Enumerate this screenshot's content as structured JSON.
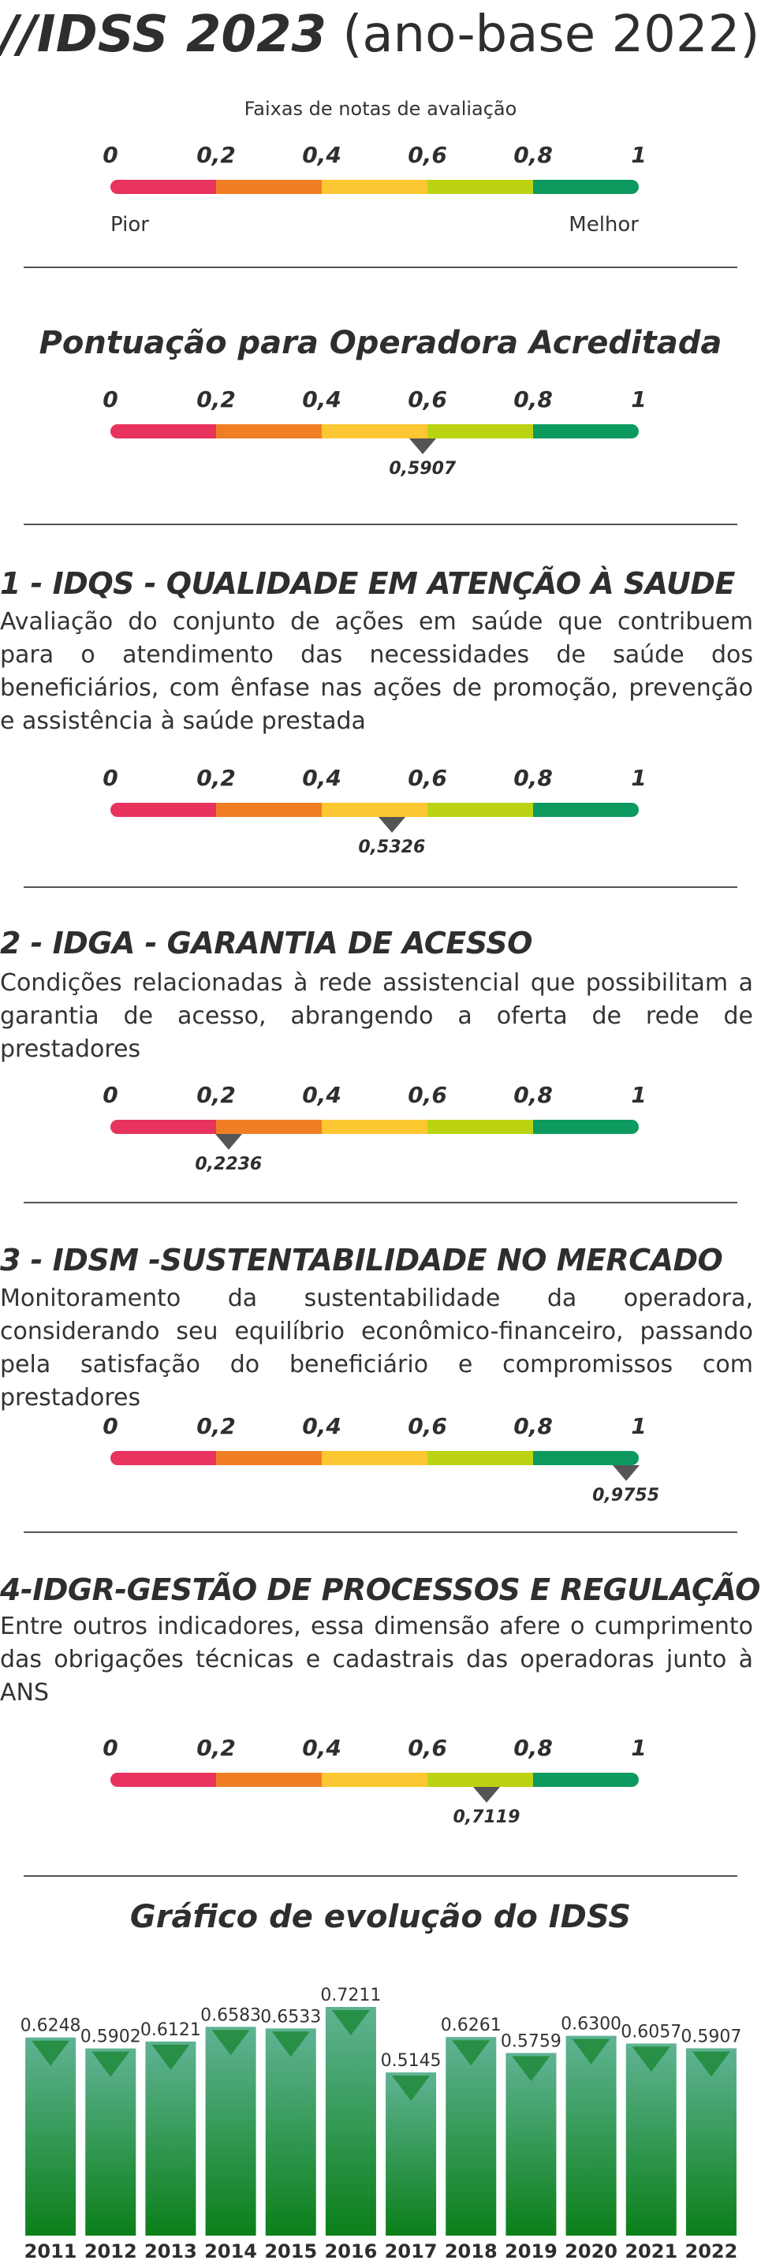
{
  "header": {
    "title_bold": "//IDSS 2023",
    "title_light": "(ano-base 2022)"
  },
  "legend_scale": {
    "caption": "Faixas de notas de avaliação",
    "left_label": "Pior",
    "right_label": "Melhor"
  },
  "scale_ticks": [
    "0",
    "0,2",
    "0,4",
    "0,6",
    "0,8",
    "1"
  ],
  "scale_colors": [
    "#e8335f",
    "#f07e25",
    "#fdc731",
    "#bcd312",
    "#0d9a5f"
  ],
  "accredited": {
    "heading": "Pontuação para Operadora Acreditada",
    "value": 0.5907,
    "value_label": "0,5907"
  },
  "sections": [
    {
      "title": "1 - IDQS - QUALIDADE EM ATENÇÃO À SAUDE",
      "description": "Avaliação do conjunto de ações em saúde que contribuem para o atendimento das necessidades de saúde dos beneficiários, com ênfase nas ações de promoção, prevenção e assistência à saúde prestada",
      "value": 0.5326,
      "value_label": "0,5326"
    },
    {
      "title": "2 - IDGA - GARANTIA DE ACESSO",
      "description": "Condições relacionadas à rede assistencial que possibilitam a garantia de acesso, abrangendo a oferta de rede de prestadores",
      "value": 0.2236,
      "value_label": "0,2236"
    },
    {
      "title": "3 - IDSM -SUSTENTABILIDADE NO MERCADO",
      "description": "Monitoramento da sustentabilidade da operadora, considerando seu equilíbrio econômico-financeiro, passando pela satisfação do beneficiário e compromissos com prestadores",
      "value": 0.9755,
      "value_label": "0,9755"
    },
    {
      "title": "4-IDGR-GESTÃO DE PROCESSOS E REGULAÇÃO",
      "description": "Entre outros indicadores, essa dimensão afere o cumprimento das obrigações técnicas e cadastrais das operadoras junto à ANS",
      "value": 0.7119,
      "value_label": "0,7119"
    }
  ],
  "chart_data": {
    "type": "bar",
    "title": "Gráfico de evolução do IDSS",
    "categories": [
      "2011",
      "2012",
      "2013",
      "2014",
      "2015",
      "2016",
      "2017",
      "2018",
      "2019",
      "2020",
      "2021",
      "2022"
    ],
    "values": [
      0.6248,
      0.5902,
      0.6121,
      0.6583,
      0.6533,
      0.7211,
      0.5145,
      0.6261,
      0.5759,
      0.63,
      0.6057,
      0.5907
    ],
    "value_labels": [
      "0.6248",
      "0.5902",
      "0.6121",
      "0.6583",
      "0.6533",
      "0.7211",
      "0.5145",
      "0.6261",
      "0.5759",
      "0.6300",
      "0.6057",
      "0.5907"
    ],
    "xlabel": "",
    "ylabel": "",
    "bar_color_top": "#5fb393",
    "bar_color_bottom": "#0b7f19",
    "arrow_color": "#1f8a3a"
  }
}
